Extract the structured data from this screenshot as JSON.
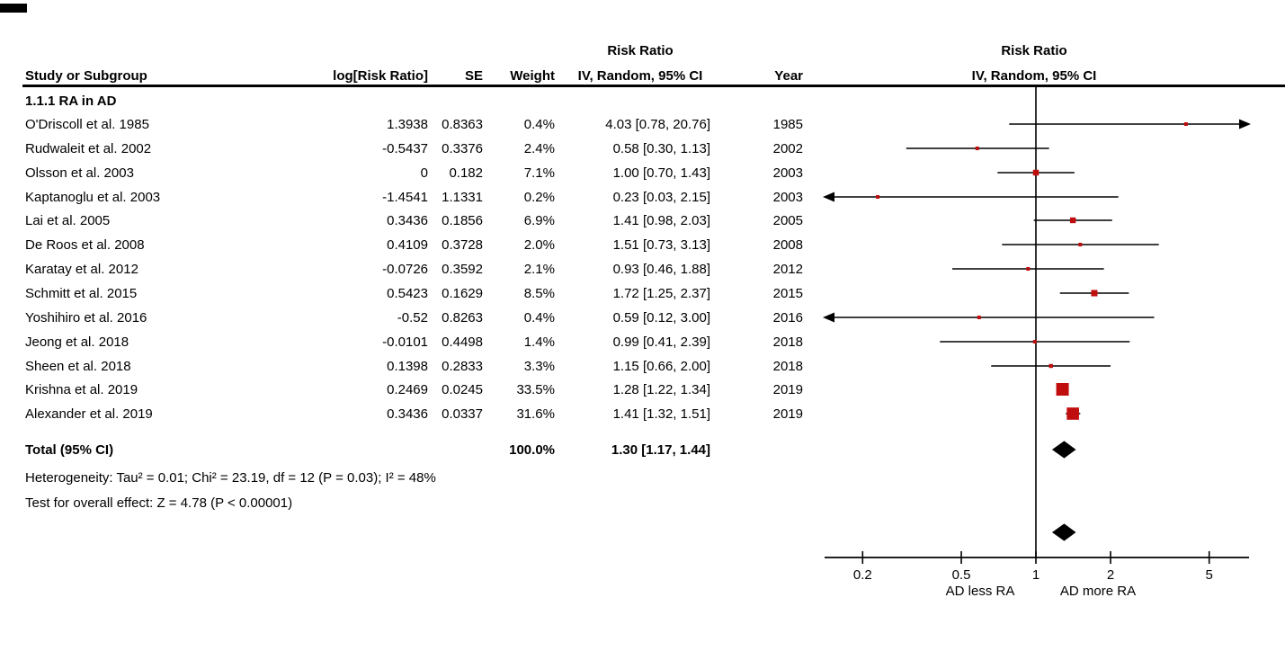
{
  "chart_data": {
    "type": "forest",
    "outcome_label": "Risk Ratio",
    "method_label": "IV, Random, 95% CI",
    "table_headers": {
      "study": "Study or Subgroup",
      "log_rr": "log[Risk Ratio]",
      "se": "SE",
      "weight": "Weight",
      "effect_line1": "Risk Ratio",
      "effect_line2": "IV, Random, 95% CI",
      "year": "Year"
    },
    "plot_headers": {
      "line1": "Risk Ratio",
      "line2": "IV, Random, 95% CI"
    },
    "subgroup_label": "1.1.1 RA in AD",
    "studies": [
      {
        "name": "O'Driscoll et al. 1985",
        "log_rr": "1.3938",
        "se": "0.8363",
        "weight": "0.4%",
        "weight_pct": 0.4,
        "rr": 4.03,
        "ci_low": 0.78,
        "ci_high": 20.76,
        "ci_text": "4.03 [0.78, 20.76]",
        "year": "1985"
      },
      {
        "name": "Rudwaleit et al. 2002",
        "log_rr": "-0.5437",
        "se": "0.3376",
        "weight": "2.4%",
        "weight_pct": 2.4,
        "rr": 0.58,
        "ci_low": 0.3,
        "ci_high": 1.13,
        "ci_text": "0.58 [0.30, 1.13]",
        "year": "2002"
      },
      {
        "name": "Olsson et al. 2003",
        "log_rr": "0",
        "se": "0.182",
        "weight": "7.1%",
        "weight_pct": 7.1,
        "rr": 1.0,
        "ci_low": 0.7,
        "ci_high": 1.43,
        "ci_text": "1.00 [0.70, 1.43]",
        "year": "2003"
      },
      {
        "name": "Kaptanoglu et al. 2003",
        "log_rr": "-1.4541",
        "se": "1.1331",
        "weight": "0.2%",
        "weight_pct": 0.2,
        "rr": 0.23,
        "ci_low": 0.03,
        "ci_high": 2.15,
        "ci_text": "0.23 [0.03, 2.15]",
        "year": "2003"
      },
      {
        "name": "Lai et al. 2005",
        "log_rr": "0.3436",
        "se": "0.1856",
        "weight": "6.9%",
        "weight_pct": 6.9,
        "rr": 1.41,
        "ci_low": 0.98,
        "ci_high": 2.03,
        "ci_text": "1.41 [0.98, 2.03]",
        "year": "2005"
      },
      {
        "name": "De Roos et al. 2008",
        "log_rr": "0.4109",
        "se": "0.3728",
        "weight": "2.0%",
        "weight_pct": 2.0,
        "rr": 1.51,
        "ci_low": 0.73,
        "ci_high": 3.13,
        "ci_text": "1.51 [0.73, 3.13]",
        "year": "2008"
      },
      {
        "name": "Karatay et al. 2012",
        "log_rr": "-0.0726",
        "se": "0.3592",
        "weight": "2.1%",
        "weight_pct": 2.1,
        "rr": 0.93,
        "ci_low": 0.46,
        "ci_high": 1.88,
        "ci_text": "0.93 [0.46, 1.88]",
        "year": "2012"
      },
      {
        "name": "Schmitt et al. 2015",
        "log_rr": "0.5423",
        "se": "0.1629",
        "weight": "8.5%",
        "weight_pct": 8.5,
        "rr": 1.72,
        "ci_low": 1.25,
        "ci_high": 2.37,
        "ci_text": "1.72 [1.25, 2.37]",
        "year": "2015"
      },
      {
        "name": "Yoshihiro et al. 2016",
        "log_rr": "-0.52",
        "se": "0.8263",
        "weight": "0.4%",
        "weight_pct": 0.4,
        "rr": 0.59,
        "ci_low": 0.12,
        "ci_high": 3.0,
        "ci_text": "0.59 [0.12, 3.00]",
        "year": "2016"
      },
      {
        "name": "Jeong et al. 2018",
        "log_rr": "-0.0101",
        "se": "0.4498",
        "weight": "1.4%",
        "weight_pct": 1.4,
        "rr": 0.99,
        "ci_low": 0.41,
        "ci_high": 2.39,
        "ci_text": "0.99 [0.41, 2.39]",
        "year": "2018"
      },
      {
        "name": "Sheen et al. 2018",
        "log_rr": "0.1398",
        "se": "0.2833",
        "weight": "3.3%",
        "weight_pct": 3.3,
        "rr": 1.15,
        "ci_low": 0.66,
        "ci_high": 2.0,
        "ci_text": "1.15 [0.66, 2.00]",
        "year": "2018"
      },
      {
        "name": "Krishna et al. 2019",
        "log_rr": "0.2469",
        "se": "0.0245",
        "weight": "33.5%",
        "weight_pct": 33.5,
        "rr": 1.28,
        "ci_low": 1.22,
        "ci_high": 1.34,
        "ci_text": "1.28 [1.22, 1.34]",
        "year": "2019"
      },
      {
        "name": "Alexander et al. 2019",
        "log_rr": "0.3436",
        "se": "0.0337",
        "weight": "31.6%",
        "weight_pct": 31.6,
        "rr": 1.41,
        "ci_low": 1.32,
        "ci_high": 1.51,
        "ci_text": "1.41 [1.32, 1.51]",
        "year": "2019"
      }
    ],
    "total": {
      "label": "Total (95% CI)",
      "weight": "100.0%",
      "ci_text": "1.30 [1.17, 1.44]",
      "rr": 1.3,
      "ci_low": 1.17,
      "ci_high": 1.44
    },
    "heterogeneity_text": "Heterogeneity: Tau² = 0.01; Chi² = 23.19, df = 12 (P = 0.03); I² = 48%",
    "overall_effect_text": "Test for overall effect: Z = 4.78 (P < 0.00001)",
    "axis": {
      "scale": "log10",
      "ticks": [
        0.2,
        0.5,
        1,
        2,
        5
      ],
      "tick_labels": [
        "0.2",
        "0.5",
        "1",
        "2",
        "5"
      ],
      "left_label": "AD less RA",
      "right_label": "AD more RA"
    },
    "legend_position": "none",
    "grid": false,
    "colors": {
      "marker": "#c00d0d",
      "line": "#000000",
      "diamond": "#000000",
      "text": "#000000"
    }
  }
}
